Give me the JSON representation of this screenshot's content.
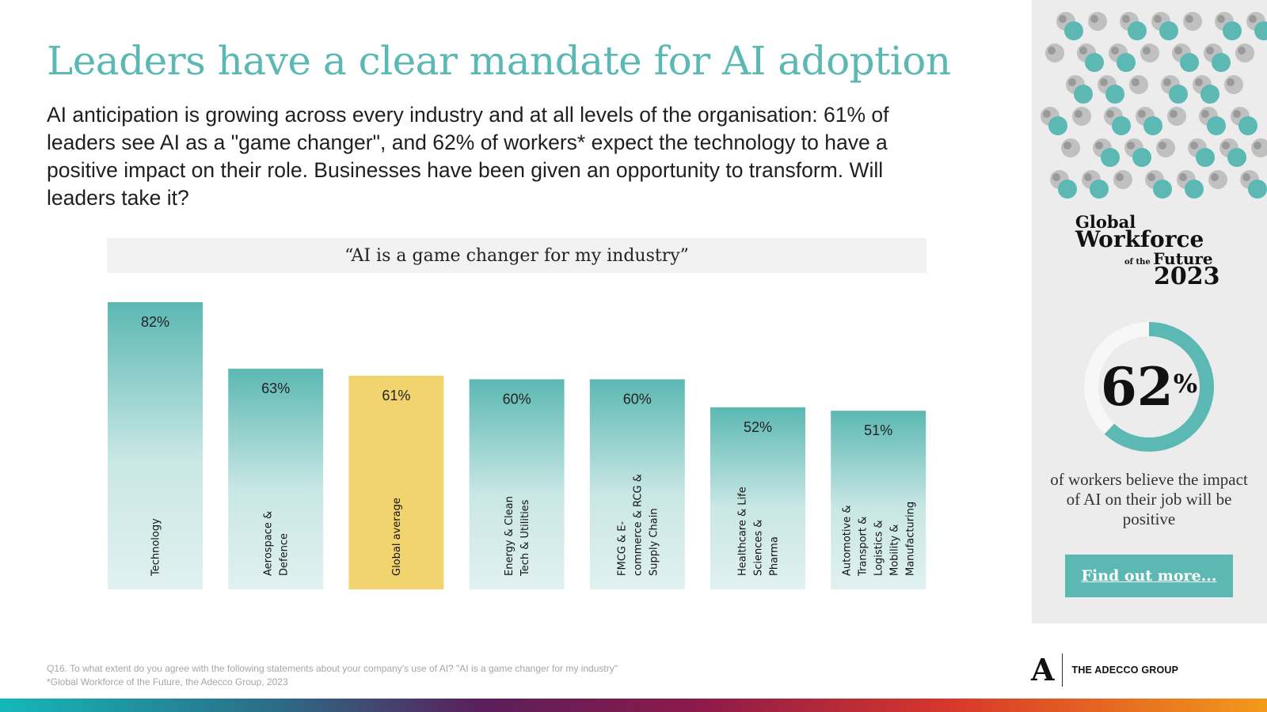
{
  "title": "Leaders have a clear mandate for AI adoption",
  "lead": "AI anticipation is growing across every industry and at all levels of the organisation: 61% of leaders see AI as a \"game changer\", and 62% of workers* expect the technology to have a positive impact on their role. Businesses have been given an opportunity to transform. Will leaders take it?",
  "chart_data": {
    "type": "bar",
    "title": "“AI is a game changer for my industry”",
    "categories": [
      "Technology",
      "Aerospace & Defence",
      "Global average",
      "Energy & Clean Tech & Utilities",
      "FMCG & E-commerce & RCG & Supply Chain",
      "Healthcare & Life Sciences & Pharma",
      "Automotive & Transport & Logistics & Mobility & Manufacturing"
    ],
    "category_lines": [
      [
        "Technology"
      ],
      [
        "Aerospace &",
        "Defence"
      ],
      [
        "Global average"
      ],
      [
        "Energy & Clean",
        "Tech & Utilities"
      ],
      [
        "FMCG & E-",
        "commerce & RCG &",
        "Supply Chain"
      ],
      [
        "Healthcare & Life",
        "Sciences &",
        "Pharma"
      ],
      [
        "Automotive &",
        "Transport &",
        "Logistics &",
        "Mobility &",
        "Manufacturing"
      ]
    ],
    "values": [
      82,
      63,
      61,
      60,
      60,
      52,
      51
    ],
    "value_labels": [
      "82%",
      "63%",
      "61%",
      "60%",
      "60%",
      "52%",
      "51%"
    ],
    "highlight_index": 2,
    "xlabel": "",
    "ylabel": "",
    "ylim": [
      0,
      82
    ],
    "colors": {
      "bar_top": "#5bb8b3",
      "bar_bottom": "#e0f1f0",
      "highlight": "#f2d46e"
    }
  },
  "side_panel": {
    "brand_line1": "Global",
    "brand_line2": "Workforce",
    "brand_line3_small": "of the",
    "brand_line3": "Future",
    "brand_line4": "2023",
    "stat_value": 62,
    "stat_number": "62",
    "stat_unit": "%",
    "stat_caption": "of workers believe the impact of AI on their job will be positive",
    "cta_label": "Find out more...",
    "accent": "#5bb8b3"
  },
  "footnote_line1": "Q16. To what extent do you agree with the following statements about your company's use of AI? \"AI is a game changer for my industry\"",
  "footnote_line2": "*Global Workforce of the Future, the Adecco Group, 2023",
  "logo": {
    "mark": "A",
    "text": "THE ADECCO GROUP"
  }
}
